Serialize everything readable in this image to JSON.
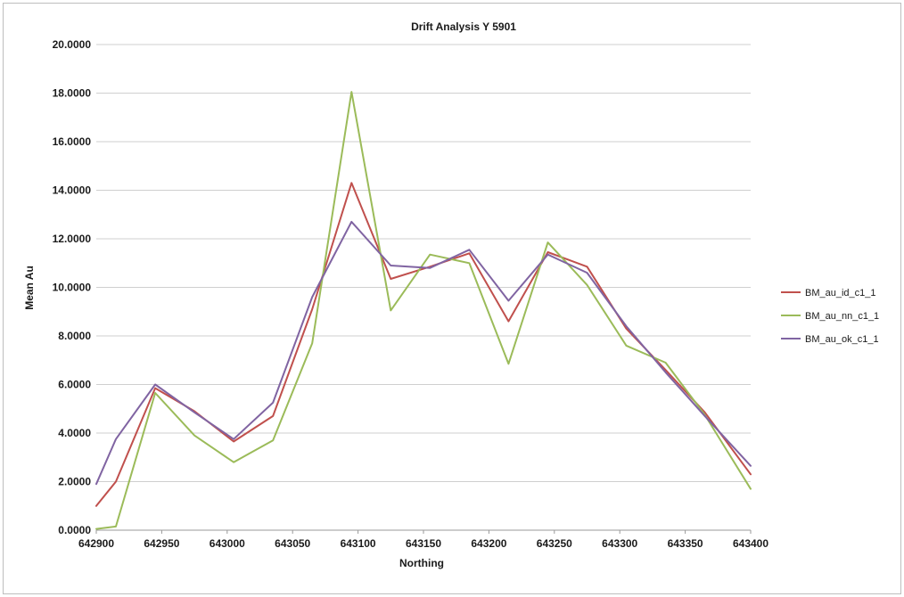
{
  "chart_data": {
    "type": "line",
    "title": "Drift Analysis Y 5901",
    "xlabel": "Northing",
    "ylabel": "Mean  Au",
    "xlim": [
      642900,
      643400
    ],
    "ylim": [
      0,
      20
    ],
    "xticks": [
      "642900",
      "642950",
      "643000",
      "643050",
      "643100",
      "643150",
      "643200",
      "643250",
      "643300",
      "643350",
      "643400"
    ],
    "yticks": [
      "0.0000",
      "2.0000",
      "4.0000",
      "6.0000",
      "8.0000",
      "10.0000",
      "12.0000",
      "14.0000",
      "16.0000",
      "18.0000",
      "20.0000"
    ],
    "grid": "horizontal",
    "legend_position": "right",
    "x": [
      642900,
      642915,
      642945,
      642975,
      643005,
      643035,
      643065,
      643095,
      643125,
      643155,
      643185,
      643215,
      643245,
      643275,
      643305,
      643335,
      643365,
      643400
    ],
    "series": [
      {
        "name": "BM_au_id_c1_1",
        "color": "#c0504d",
        "values": [
          1.0,
          2.0,
          5.85,
          4.9,
          3.65,
          4.7,
          9.1,
          14.3,
          10.35,
          10.85,
          11.4,
          8.6,
          11.45,
          10.85,
          8.3,
          6.6,
          4.85,
          2.3
        ]
      },
      {
        "name": "BM_au_nn_c1_1",
        "color": "#9bbb59",
        "values": [
          0.05,
          0.15,
          5.65,
          3.9,
          2.8,
          3.7,
          7.7,
          18.05,
          9.05,
          11.35,
          11.0,
          6.85,
          11.85,
          10.1,
          7.6,
          6.9,
          4.75,
          1.7
        ]
      },
      {
        "name": "BM_au_ok_c1_1",
        "color": "#8064a2",
        "values": [
          1.9,
          3.75,
          6.0,
          4.85,
          3.75,
          5.25,
          9.6,
          12.7,
          10.9,
          10.8,
          11.55,
          9.45,
          11.35,
          10.6,
          8.4,
          6.5,
          4.7,
          2.65
        ]
      }
    ]
  }
}
